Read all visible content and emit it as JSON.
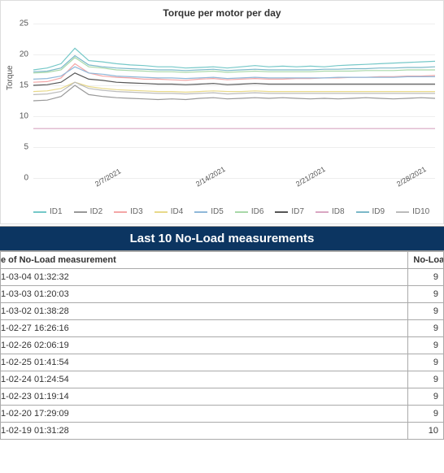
{
  "chart": {
    "type": "line",
    "title": "Torque per motor per day",
    "ylabel": "Torque",
    "ylim": [
      0,
      25
    ],
    "ytick_step": 5,
    "yticks": [
      0,
      5,
      10,
      15,
      20,
      25
    ],
    "xlabels": [
      "2/7/2021",
      "2/14/2021",
      "2/21/2021",
      "2/28/2021"
    ],
    "xlabel_positions_pct": [
      15,
      40,
      65,
      90
    ],
    "grid_color": "#eeeeee",
    "background_color": "#ffffff",
    "title_fontsize": 12,
    "label_fontsize": 10,
    "line_width": 1.2,
    "n_points": 30,
    "series": [
      {
        "id": "ID1",
        "color": "#75c8c8",
        "values": [
          17.5,
          17.8,
          18.5,
          21.0,
          19.0,
          18.8,
          18.5,
          18.3,
          18.2,
          18.0,
          18.0,
          17.8,
          17.9,
          18.0,
          17.8,
          18.0,
          18.2,
          18.0,
          18.1,
          18.0,
          18.1,
          18.0,
          18.2,
          18.3,
          18.4,
          18.5,
          18.6,
          18.7,
          18.8,
          18.9
        ]
      },
      {
        "id": "ID2",
        "color": "#999999",
        "values": [
          12.5,
          12.6,
          13.2,
          15.0,
          13.5,
          13.2,
          13.0,
          12.9,
          12.8,
          12.7,
          12.8,
          12.7,
          12.9,
          13.0,
          12.8,
          12.9,
          13.0,
          12.9,
          13.0,
          12.9,
          12.8,
          12.9,
          12.8,
          12.9,
          13.0,
          12.9,
          12.8,
          12.9,
          13.0,
          12.9
        ]
      },
      {
        "id": "ID3",
        "color": "#f4a6a6",
        "values": [
          15.5,
          15.6,
          16.2,
          18.5,
          17.0,
          16.5,
          16.3,
          16.2,
          16.0,
          16.0,
          15.9,
          15.8,
          16.0,
          16.1,
          15.9,
          16.0,
          16.1,
          16.0,
          16.0,
          16.1,
          16.1,
          16.2,
          16.2,
          16.3,
          16.3,
          16.4,
          16.4,
          16.5,
          16.5,
          16.6
        ]
      },
      {
        "id": "ID4",
        "color": "#e8d98a",
        "values": [
          14.0,
          14.1,
          14.5,
          15.5,
          14.8,
          14.5,
          14.3,
          14.2,
          14.1,
          14.0,
          14.0,
          13.9,
          14.0,
          14.1,
          14.0,
          14.0,
          14.1,
          14.0,
          14.0,
          14.0,
          14.0,
          14.0,
          14.0,
          14.0,
          14.0,
          14.0,
          14.0,
          14.0,
          14.0,
          14.0
        ]
      },
      {
        "id": "ID5",
        "color": "#8fb8d9",
        "values": [
          16.0,
          16.1,
          16.5,
          18.0,
          17.0,
          16.8,
          16.5,
          16.4,
          16.3,
          16.2,
          16.2,
          16.1,
          16.2,
          16.3,
          16.1,
          16.2,
          16.3,
          16.2,
          16.2,
          16.2,
          16.2,
          16.2,
          16.3,
          16.3,
          16.3,
          16.3,
          16.3,
          16.4,
          16.4,
          16.4
        ]
      },
      {
        "id": "ID6",
        "color": "#a8d8a8",
        "values": [
          17.0,
          17.1,
          17.5,
          19.5,
          18.0,
          17.8,
          17.5,
          17.4,
          17.3,
          17.2,
          17.2,
          17.1,
          17.2,
          17.3,
          17.1,
          17.2,
          17.3,
          17.2,
          17.2,
          17.2,
          17.2,
          17.3,
          17.3,
          17.3,
          17.4,
          17.4,
          17.4,
          17.5,
          17.5,
          17.5
        ]
      },
      {
        "id": "ID7",
        "color": "#555555",
        "values": [
          15.0,
          15.1,
          15.5,
          17.0,
          16.0,
          15.8,
          15.5,
          15.4,
          15.3,
          15.2,
          15.2,
          15.1,
          15.2,
          15.3,
          15.1,
          15.2,
          15.3,
          15.2,
          15.2,
          15.2,
          15.2,
          15.2,
          15.2,
          15.2,
          15.2,
          15.2,
          15.2,
          15.2,
          15.2,
          15.2
        ]
      },
      {
        "id": "ID8",
        "color": "#d9a6c2",
        "values": [
          8.0,
          8.0,
          8.0,
          8.0,
          8.0,
          8.0,
          8.0,
          8.0,
          8.0,
          8.0,
          8.0,
          8.0,
          8.0,
          8.0,
          8.0,
          8.0,
          8.0,
          8.0,
          8.0,
          8.0,
          8.0,
          8.0,
          8.0,
          8.0,
          8.0,
          8.0,
          8.0,
          8.0,
          8.0,
          8.0
        ]
      },
      {
        "id": "ID9",
        "color": "#7bb8c8",
        "values": [
          17.2,
          17.3,
          17.8,
          19.8,
          18.3,
          18.0,
          17.8,
          17.7,
          17.6,
          17.5,
          17.5,
          17.4,
          17.5,
          17.6,
          17.4,
          17.5,
          17.6,
          17.5,
          17.5,
          17.5,
          17.5,
          17.6,
          17.6,
          17.7,
          17.7,
          17.8,
          17.8,
          17.9,
          17.9,
          18.0
        ]
      },
      {
        "id": "ID10",
        "color": "#bbbbbb",
        "values": [
          13.5,
          13.6,
          14.0,
          15.5,
          14.5,
          14.2,
          14.0,
          13.9,
          13.8,
          13.7,
          13.7,
          13.6,
          13.7,
          13.8,
          13.6,
          13.7,
          13.8,
          13.7,
          13.7,
          13.7,
          13.7,
          13.7,
          13.7,
          13.7,
          13.7,
          13.7,
          13.7,
          13.7,
          13.7,
          13.7
        ]
      }
    ]
  },
  "table": {
    "title": "Last 10 No-Load measurements",
    "title_bg": "#0c3561",
    "title_color": "#ffffff",
    "border_color": "#aaaaaa",
    "columns": [
      {
        "key": "ts",
        "label": "e of No-Load measurement",
        "width_pct": 92,
        "align": "left"
      },
      {
        "key": "val",
        "label": "No-Load value",
        "width_pct": 8,
        "align": "right"
      }
    ],
    "rows": [
      {
        "ts": "1-03-04 01:32:32",
        "val": "9"
      },
      {
        "ts": "1-03-03 01:20:03",
        "val": "9"
      },
      {
        "ts": "1-03-02 01:38:28",
        "val": "9"
      },
      {
        "ts": "1-02-27 16:26:16",
        "val": "9"
      },
      {
        "ts": "1-02-26 02:06:19",
        "val": "9"
      },
      {
        "ts": "1-02-25 01:41:54",
        "val": "9"
      },
      {
        "ts": "1-02-24 01:24:54",
        "val": "9"
      },
      {
        "ts": "1-02-23 01:19:14",
        "val": "9"
      },
      {
        "ts": "1-02-20 17:29:09",
        "val": "9"
      },
      {
        "ts": "1-02-19 01:31:28",
        "val": "10"
      }
    ]
  }
}
